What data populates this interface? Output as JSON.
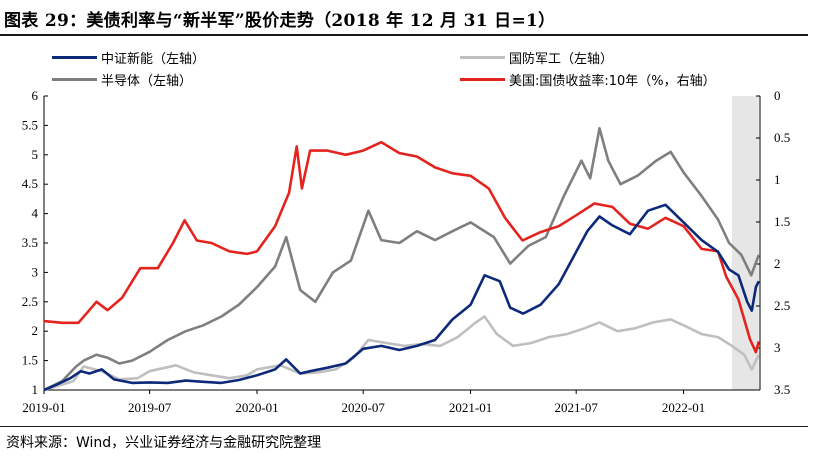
{
  "title": "图表 29：美债利率与“新半军”股价走势（2018 年 12 月 31 日=1）",
  "source": "资料来源：Wind，兴业证券经济与金融研究院整理",
  "chart_data": {
    "type": "line",
    "x_ticks": [
      "2019-01",
      "2019-07",
      "2020-01",
      "2020-07",
      "2021-01",
      "2021-07",
      "2022-01"
    ],
    "y_left": {
      "ticks": [
        "1",
        "1.5",
        "2",
        "2.5",
        "3",
        "3.5",
        "4",
        "4.5",
        "5",
        "5.5",
        "6"
      ],
      "range": [
        1,
        6
      ]
    },
    "y_right": {
      "ticks": [
        "0",
        "0.5",
        "1",
        "1.5",
        "2",
        "2.5",
        "3",
        "3.5"
      ],
      "range": [
        0,
        3.5
      ],
      "inverted": true
    },
    "shaded_region": {
      "from": "2022-03-25",
      "to": "2022-05-10"
    },
    "series": [
      {
        "name": "中证新能（左轴）",
        "color": "#0d2a7a",
        "axis": "left",
        "points": [
          [
            "2019-01-01",
            1.0
          ],
          [
            "2019-01-20",
            1.08
          ],
          [
            "2019-02-15",
            1.2
          ],
          [
            "2019-03-05",
            1.32
          ],
          [
            "2019-03-20",
            1.28
          ],
          [
            "2019-04-10",
            1.35
          ],
          [
            "2019-05-01",
            1.18
          ],
          [
            "2019-06-01",
            1.12
          ],
          [
            "2019-07-01",
            1.13
          ],
          [
            "2019-08-01",
            1.12
          ],
          [
            "2019-09-01",
            1.16
          ],
          [
            "2019-10-01",
            1.14
          ],
          [
            "2019-11-01",
            1.12
          ],
          [
            "2019-12-01",
            1.17
          ],
          [
            "2020-01-01",
            1.25
          ],
          [
            "2020-02-01",
            1.35
          ],
          [
            "2020-02-20",
            1.52
          ],
          [
            "2020-03-15",
            1.28
          ],
          [
            "2020-04-01",
            1.32
          ],
          [
            "2020-05-01",
            1.38
          ],
          [
            "2020-06-01",
            1.45
          ],
          [
            "2020-07-01",
            1.7
          ],
          [
            "2020-08-01",
            1.75
          ],
          [
            "2020-09-01",
            1.68
          ],
          [
            "2020-10-01",
            1.75
          ],
          [
            "2020-11-01",
            1.85
          ],
          [
            "2020-12-01",
            2.2
          ],
          [
            "2021-01-01",
            2.45
          ],
          [
            "2021-01-25",
            2.95
          ],
          [
            "2021-02-20",
            2.85
          ],
          [
            "2021-03-10",
            2.4
          ],
          [
            "2021-04-01",
            2.3
          ],
          [
            "2021-05-01",
            2.45
          ],
          [
            "2021-06-01",
            2.8
          ],
          [
            "2021-07-01",
            3.35
          ],
          [
            "2021-07-20",
            3.7
          ],
          [
            "2021-08-10",
            3.95
          ],
          [
            "2021-09-01",
            3.8
          ],
          [
            "2021-10-01",
            3.65
          ],
          [
            "2021-11-01",
            4.05
          ],
          [
            "2021-12-01",
            4.15
          ],
          [
            "2022-01-01",
            3.85
          ],
          [
            "2022-02-01",
            3.55
          ],
          [
            "2022-03-01",
            3.35
          ],
          [
            "2022-03-20",
            3.05
          ],
          [
            "2022-04-05",
            2.95
          ],
          [
            "2022-04-20",
            2.5
          ],
          [
            "2022-04-28",
            2.35
          ],
          [
            "2022-05-05",
            2.75
          ],
          [
            "2022-05-10",
            2.85
          ]
        ]
      },
      {
        "name": "国防军工（左轴）",
        "color": "#bfbfbf",
        "axis": "left",
        "points": [
          [
            "2019-01-01",
            1.0
          ],
          [
            "2019-02-20",
            1.15
          ],
          [
            "2019-03-10",
            1.4
          ],
          [
            "2019-04-10",
            1.32
          ],
          [
            "2019-05-10",
            1.18
          ],
          [
            "2019-06-10",
            1.2
          ],
          [
            "2019-07-01",
            1.32
          ],
          [
            "2019-08-15",
            1.42
          ],
          [
            "2019-09-15",
            1.3
          ],
          [
            "2019-10-15",
            1.25
          ],
          [
            "2019-11-15",
            1.2
          ],
          [
            "2019-12-15",
            1.25
          ],
          [
            "2020-01-01",
            1.35
          ],
          [
            "2020-02-10",
            1.42
          ],
          [
            "2020-03-15",
            1.28
          ],
          [
            "2020-04-15",
            1.3
          ],
          [
            "2020-05-15",
            1.35
          ],
          [
            "2020-06-15",
            1.55
          ],
          [
            "2020-07-10",
            1.85
          ],
          [
            "2020-08-10",
            1.8
          ],
          [
            "2020-09-10",
            1.75
          ],
          [
            "2020-10-10",
            1.78
          ],
          [
            "2020-11-10",
            1.75
          ],
          [
            "2020-12-10",
            1.9
          ],
          [
            "2021-01-10",
            2.15
          ],
          [
            "2021-01-25",
            2.25
          ],
          [
            "2021-02-15",
            1.95
          ],
          [
            "2021-03-15",
            1.75
          ],
          [
            "2021-04-15",
            1.8
          ],
          [
            "2021-05-15",
            1.9
          ],
          [
            "2021-06-15",
            1.95
          ],
          [
            "2021-07-15",
            2.05
          ],
          [
            "2021-08-10",
            2.15
          ],
          [
            "2021-09-10",
            2.0
          ],
          [
            "2021-10-10",
            2.05
          ],
          [
            "2021-11-10",
            2.15
          ],
          [
            "2021-12-10",
            2.2
          ],
          [
            "2022-01-01",
            2.1
          ],
          [
            "2022-02-01",
            1.95
          ],
          [
            "2022-03-01",
            1.9
          ],
          [
            "2022-03-25",
            1.75
          ],
          [
            "2022-04-15",
            1.6
          ],
          [
            "2022-04-28",
            1.35
          ],
          [
            "2022-05-10",
            1.6
          ]
        ]
      },
      {
        "name": "半导体（左轴）",
        "color": "#7f7f7f",
        "axis": "left",
        "points": [
          [
            "2019-01-01",
            1.0
          ],
          [
            "2019-02-01",
            1.15
          ],
          [
            "2019-02-25",
            1.4
          ],
          [
            "2019-03-10",
            1.5
          ],
          [
            "2019-04-01",
            1.6
          ],
          [
            "2019-04-20",
            1.55
          ],
          [
            "2019-05-10",
            1.45
          ],
          [
            "2019-06-01",
            1.5
          ],
          [
            "2019-07-01",
            1.65
          ],
          [
            "2019-08-01",
            1.85
          ],
          [
            "2019-09-01",
            2.0
          ],
          [
            "2019-10-01",
            2.1
          ],
          [
            "2019-11-01",
            2.25
          ],
          [
            "2019-12-01",
            2.45
          ],
          [
            "2020-01-01",
            2.75
          ],
          [
            "2020-02-01",
            3.1
          ],
          [
            "2020-02-20",
            3.6
          ],
          [
            "2020-03-15",
            2.7
          ],
          [
            "2020-04-10",
            2.5
          ],
          [
            "2020-05-10",
            3.0
          ],
          [
            "2020-06-10",
            3.2
          ],
          [
            "2020-07-10",
            4.05
          ],
          [
            "2020-08-01",
            3.55
          ],
          [
            "2020-09-01",
            3.5
          ],
          [
            "2020-10-01",
            3.7
          ],
          [
            "2020-11-01",
            3.55
          ],
          [
            "2020-12-01",
            3.7
          ],
          [
            "2021-01-01",
            3.85
          ],
          [
            "2021-02-10",
            3.6
          ],
          [
            "2021-03-10",
            3.15
          ],
          [
            "2021-04-10",
            3.45
          ],
          [
            "2021-05-10",
            3.6
          ],
          [
            "2021-06-10",
            4.3
          ],
          [
            "2021-07-10",
            4.9
          ],
          [
            "2021-07-25",
            4.6
          ],
          [
            "2021-08-10",
            5.45
          ],
          [
            "2021-08-25",
            4.9
          ],
          [
            "2021-09-15",
            4.5
          ],
          [
            "2021-10-15",
            4.65
          ],
          [
            "2021-11-15",
            4.9
          ],
          [
            "2021-12-10",
            5.05
          ],
          [
            "2022-01-01",
            4.7
          ],
          [
            "2022-02-01",
            4.3
          ],
          [
            "2022-03-01",
            3.9
          ],
          [
            "2022-03-20",
            3.5
          ],
          [
            "2022-04-10",
            3.3
          ],
          [
            "2022-04-27",
            2.95
          ],
          [
            "2022-05-10",
            3.3
          ]
        ]
      },
      {
        "name": "美国:国债收益率:10年（%，右轴）",
        "color": "#e3241e",
        "axis": "right",
        "points": [
          [
            "2019-01-01",
            2.68
          ],
          [
            "2019-02-01",
            2.7
          ],
          [
            "2019-03-01",
            2.7
          ],
          [
            "2019-04-01",
            2.45
          ],
          [
            "2019-04-20",
            2.55
          ],
          [
            "2019-05-15",
            2.4
          ],
          [
            "2019-06-15",
            2.05
          ],
          [
            "2019-07-15",
            2.05
          ],
          [
            "2019-08-10",
            1.75
          ],
          [
            "2019-08-30",
            1.48
          ],
          [
            "2019-09-20",
            1.72
          ],
          [
            "2019-10-15",
            1.75
          ],
          [
            "2019-11-15",
            1.85
          ],
          [
            "2019-12-15",
            1.88
          ],
          [
            "2020-01-01",
            1.85
          ],
          [
            "2020-02-01",
            1.55
          ],
          [
            "2020-02-25",
            1.15
          ],
          [
            "2020-03-09",
            0.6
          ],
          [
            "2020-03-18",
            1.1
          ],
          [
            "2020-04-01",
            0.65
          ],
          [
            "2020-05-01",
            0.65
          ],
          [
            "2020-06-01",
            0.7
          ],
          [
            "2020-07-01",
            0.65
          ],
          [
            "2020-08-01",
            0.55
          ],
          [
            "2020-09-01",
            0.68
          ],
          [
            "2020-10-01",
            0.72
          ],
          [
            "2020-11-01",
            0.85
          ],
          [
            "2020-12-01",
            0.92
          ],
          [
            "2021-01-01",
            0.95
          ],
          [
            "2021-02-01",
            1.1
          ],
          [
            "2021-03-01",
            1.45
          ],
          [
            "2021-03-31",
            1.72
          ],
          [
            "2021-05-01",
            1.62
          ],
          [
            "2021-06-01",
            1.55
          ],
          [
            "2021-07-01",
            1.42
          ],
          [
            "2021-08-01",
            1.28
          ],
          [
            "2021-09-01",
            1.32
          ],
          [
            "2021-10-01",
            1.52
          ],
          [
            "2021-11-01",
            1.58
          ],
          [
            "2021-12-01",
            1.45
          ],
          [
            "2022-01-01",
            1.55
          ],
          [
            "2022-02-01",
            1.82
          ],
          [
            "2022-03-01",
            1.85
          ],
          [
            "2022-03-15",
            2.15
          ],
          [
            "2022-04-05",
            2.42
          ],
          [
            "2022-04-25",
            2.9
          ],
          [
            "2022-05-05",
            3.05
          ],
          [
            "2022-05-10",
            2.92
          ]
        ]
      }
    ]
  }
}
